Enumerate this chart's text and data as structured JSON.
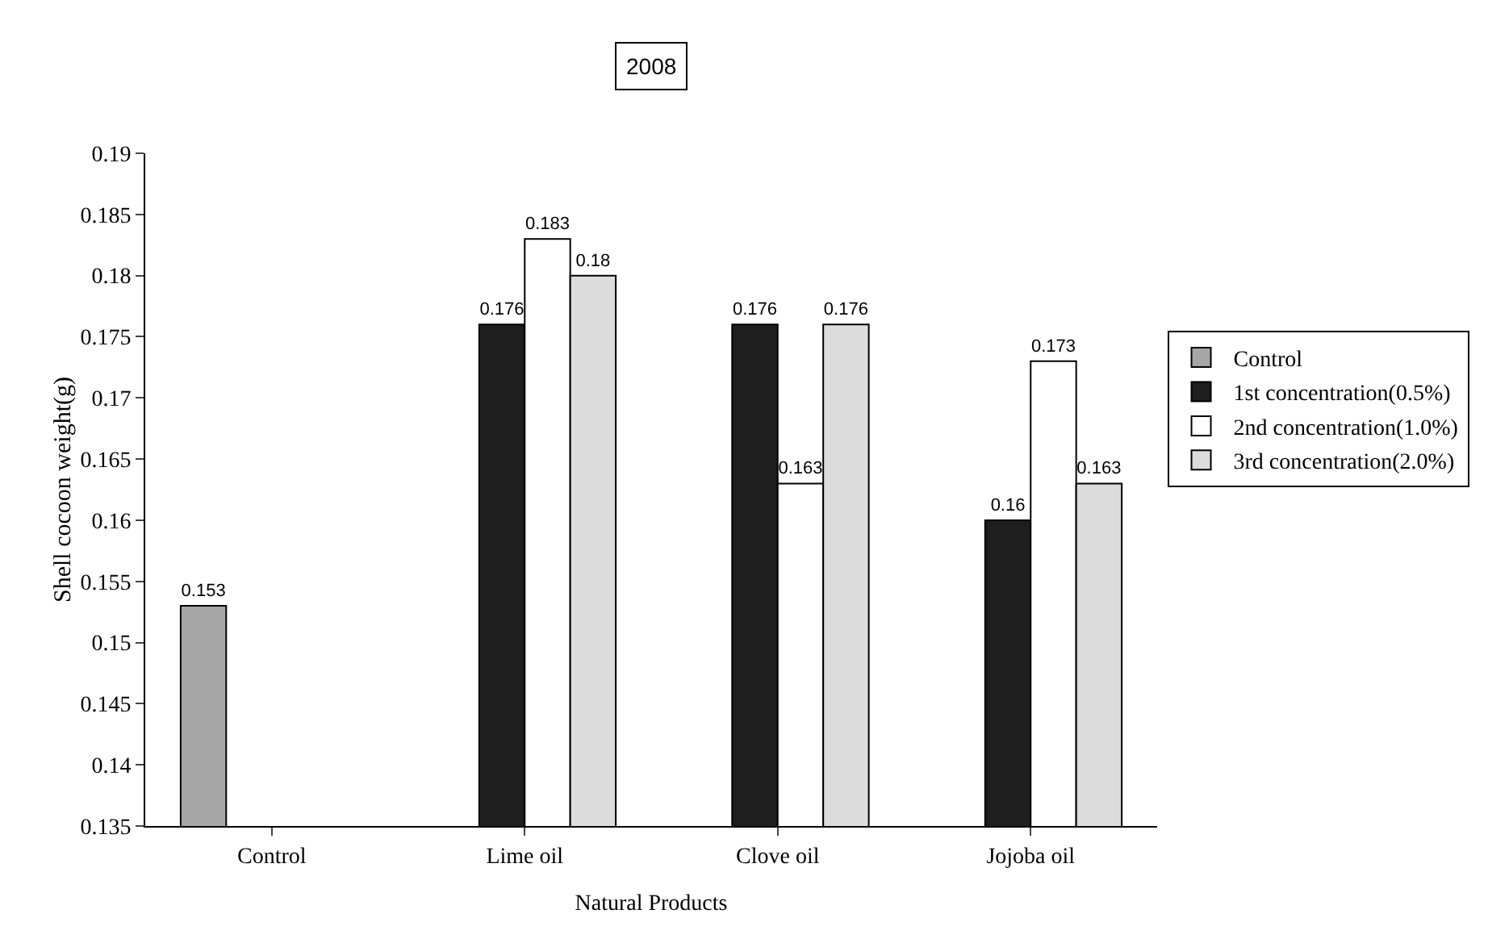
{
  "chart_data": {
    "type": "bar",
    "title": "2008",
    "xlabel": "Natural Products",
    "ylabel": "Shell cocoon weight(g)",
    "categories": [
      "Control",
      "Lime oil",
      "Clove oil",
      "Jojoba oil"
    ],
    "series": [
      {
        "name": "Control",
        "color": "#a6a6a6",
        "values": [
          0.153,
          null,
          null,
          null
        ]
      },
      {
        "name": "1st concentration(0.5%)",
        "color": "#1e1e1e",
        "values": [
          null,
          0.176,
          0.176,
          0.16
        ]
      },
      {
        "name": "2nd concentration(1.0%)",
        "color": "#ffffff",
        "values": [
          null,
          0.183,
          0.163,
          0.173
        ]
      },
      {
        "name": "3rd concentration(2.0%)",
        "color": "#dcdcdc",
        "values": [
          null,
          0.18,
          0.176,
          0.163
        ]
      }
    ],
    "ylim": [
      0.135,
      0.19
    ],
    "yticks": [
      0.135,
      0.14,
      0.145,
      0.15,
      0.155,
      0.16,
      0.165,
      0.17,
      0.175,
      0.18,
      0.185,
      0.19
    ],
    "grid": false,
    "legend": "right",
    "data_labels": true
  }
}
